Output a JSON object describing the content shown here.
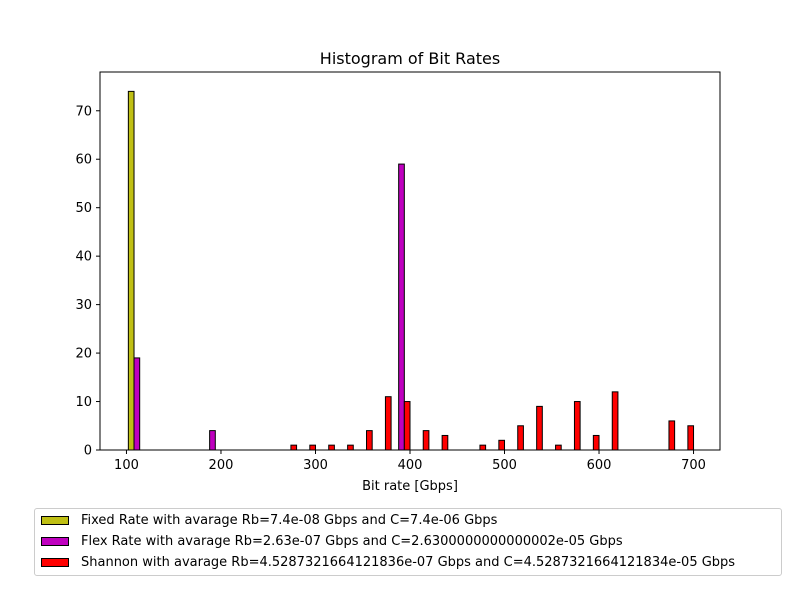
{
  "chart_data": {
    "type": "bar",
    "title": "Histogram of Bit Rates",
    "xlabel": "Bit rate [Gbps]",
    "ylabel": "",
    "xlim": [
      72,
      728
    ],
    "ylim": [
      0,
      78
    ],
    "xticks": [
      100,
      200,
      300,
      400,
      500,
      600,
      700
    ],
    "yticks": [
      0,
      10,
      20,
      30,
      40,
      50,
      60,
      70
    ],
    "bar_width": 6,
    "grid": false,
    "legend_position": "below",
    "series": [
      {
        "name": "Fixed Rate with avarage Rb=7.4e-08 Gbps and C=7.4e-06 Gbps",
        "color": "#bfbf14",
        "x": [
          105
        ],
        "values": [
          74
        ]
      },
      {
        "name": "Flex Rate with avarage Rb=2.63e-07 Gbps and C=2.6300000000000002e-05 Gbps",
        "color": "#bf00bf",
        "x": [
          111,
          191,
          391
        ],
        "values": [
          19,
          4,
          59
        ]
      },
      {
        "name": "Shannon with avarage Rb=4.5287321664121836e-07 Gbps and C=4.5287321664121834e-05 Gbps",
        "color": "#ff0000",
        "x": [
          277,
          297,
          317,
          337,
          357,
          377,
          397,
          417,
          437,
          477,
          497,
          517,
          537,
          557,
          577,
          597,
          617,
          677,
          697
        ],
        "values": [
          1,
          1,
          1,
          1,
          4,
          11,
          10,
          4,
          3,
          1,
          2,
          5,
          9,
          1,
          10,
          3,
          12,
          6,
          5
        ]
      }
    ]
  }
}
